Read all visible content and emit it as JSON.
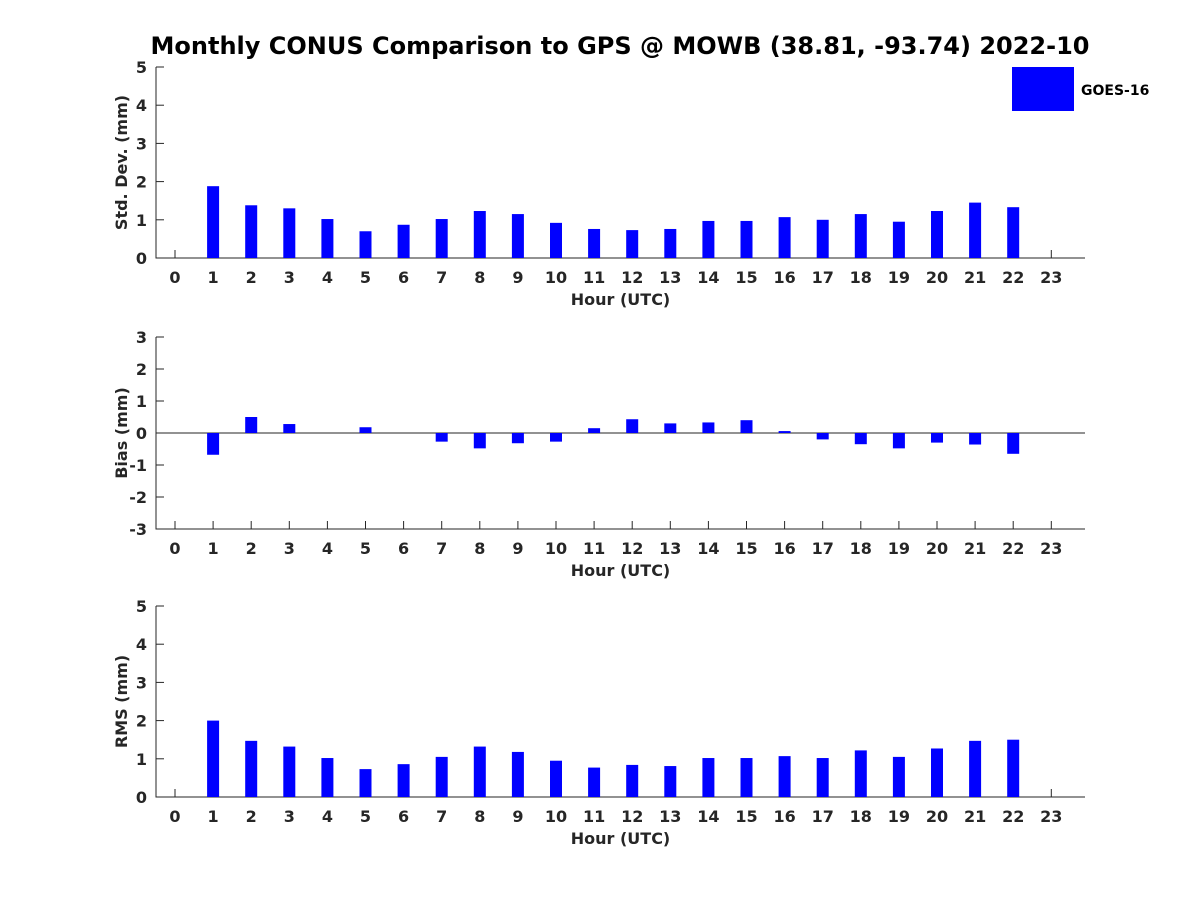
{
  "figure": {
    "title": "Monthly CONUS Comparison to GPS @ MOWB (38.81, -93.74) 2022-10",
    "legend": {
      "label": "GOES-16",
      "color": "#0000ff",
      "placement": "top-right"
    }
  },
  "chart_data": [
    {
      "type": "bar",
      "xlabel": "Hour (UTC)",
      "ylabel": "Std. Dev. (mm)",
      "ylim": [
        0,
        5
      ],
      "yticks": [
        "0",
        "1",
        "2",
        "3",
        "4",
        "5"
      ],
      "categories": [
        "0",
        "1",
        "2",
        "3",
        "4",
        "5",
        "6",
        "7",
        "8",
        "9",
        "10",
        "11",
        "12",
        "13",
        "14",
        "15",
        "16",
        "17",
        "18",
        "19",
        "20",
        "21",
        "22",
        "23"
      ],
      "series": [
        {
          "name": "GOES-16",
          "color": "#0000ff",
          "values": [
            null,
            1.88,
            1.38,
            1.3,
            1.02,
            0.7,
            0.87,
            1.02,
            1.23,
            1.15,
            0.92,
            0.76,
            0.73,
            0.76,
            0.97,
            0.97,
            1.07,
            1.0,
            1.15,
            0.95,
            1.23,
            1.45,
            1.33,
            null
          ]
        }
      ]
    },
    {
      "type": "bar",
      "xlabel": "Hour (UTC)",
      "ylabel": "Bias (mm)",
      "ylim": [
        -3,
        3
      ],
      "yticks": [
        "-3",
        "-2",
        "-1",
        "0",
        "1",
        "2",
        "3"
      ],
      "categories": [
        "0",
        "1",
        "2",
        "3",
        "4",
        "5",
        "6",
        "7",
        "8",
        "9",
        "10",
        "11",
        "12",
        "13",
        "14",
        "15",
        "16",
        "17",
        "18",
        "19",
        "20",
        "21",
        "22",
        "23"
      ],
      "series": [
        {
          "name": "GOES-16",
          "color": "#0000ff",
          "values": [
            null,
            -0.68,
            0.5,
            0.28,
            null,
            0.18,
            null,
            -0.27,
            -0.48,
            -0.32,
            -0.27,
            0.15,
            0.43,
            0.3,
            0.33,
            0.4,
            0.06,
            -0.2,
            -0.35,
            -0.48,
            -0.3,
            -0.36,
            -0.65,
            null
          ]
        }
      ]
    },
    {
      "type": "bar",
      "xlabel": "Hour (UTC)",
      "ylabel": "RMS (mm)",
      "ylim": [
        0,
        5
      ],
      "yticks": [
        "0",
        "1",
        "2",
        "3",
        "4",
        "5"
      ],
      "categories": [
        "0",
        "1",
        "2",
        "3",
        "4",
        "5",
        "6",
        "7",
        "8",
        "9",
        "10",
        "11",
        "12",
        "13",
        "14",
        "15",
        "16",
        "17",
        "18",
        "19",
        "20",
        "21",
        "22",
        "23"
      ],
      "series": [
        {
          "name": "GOES-16",
          "color": "#0000ff",
          "values": [
            null,
            2.0,
            1.47,
            1.32,
            1.02,
            0.73,
            0.86,
            1.05,
            1.32,
            1.18,
            0.95,
            0.77,
            0.84,
            0.81,
            1.02,
            1.02,
            1.07,
            1.02,
            1.22,
            1.05,
            1.27,
            1.47,
            1.5,
            null
          ]
        }
      ]
    }
  ]
}
